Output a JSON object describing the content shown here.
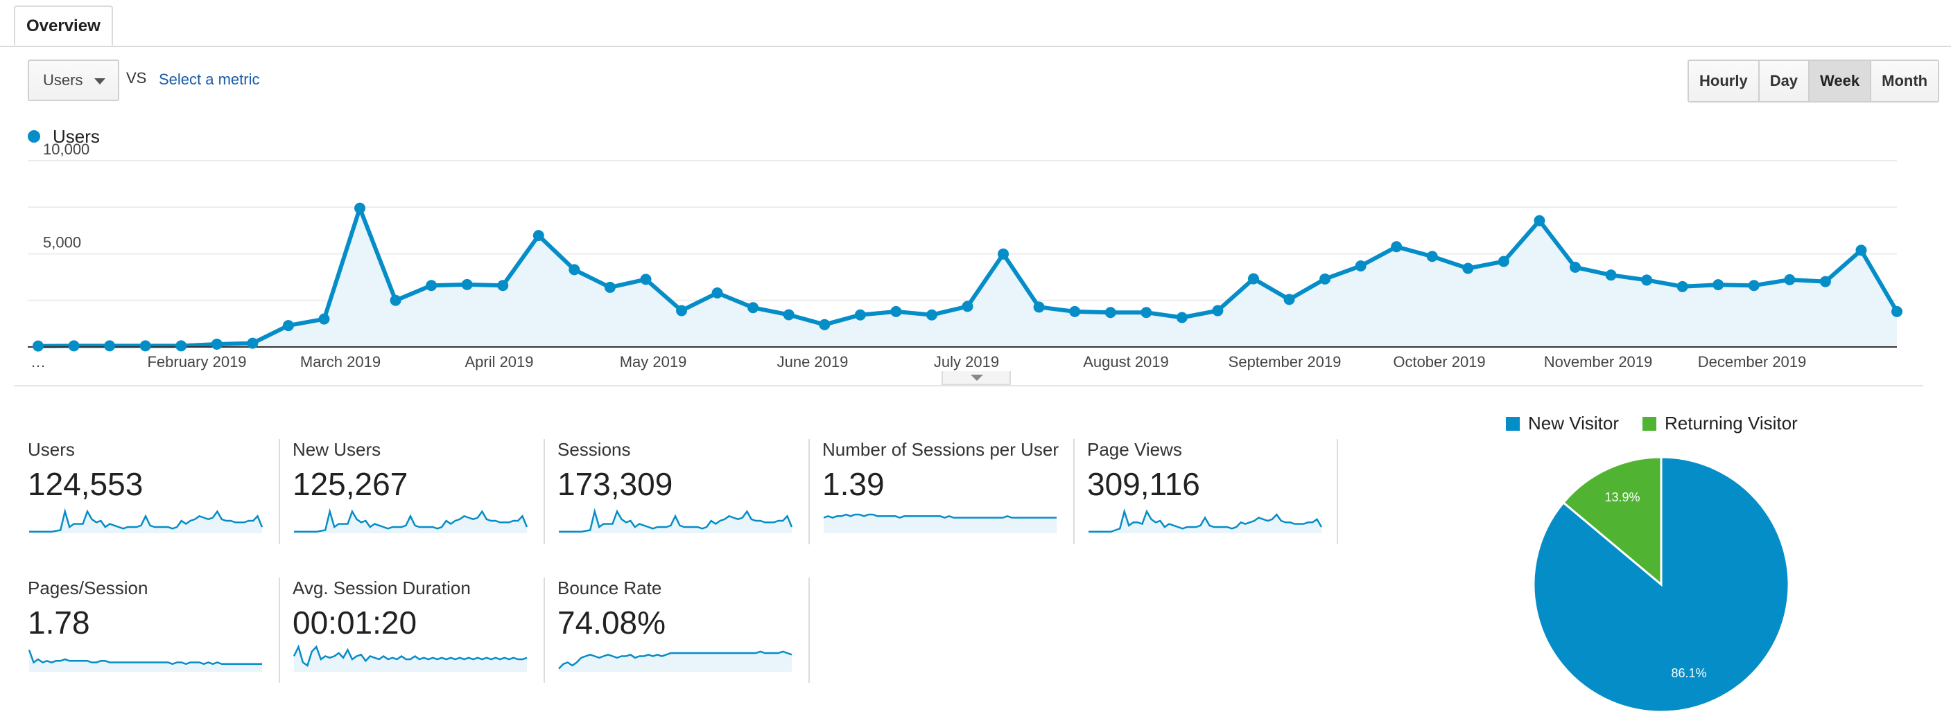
{
  "tabs": {
    "overview": "Overview"
  },
  "controls": {
    "metric_select_value": "Users",
    "vs_label": "VS",
    "select_metric_link": "Select a metric",
    "granularity": [
      "Hourly",
      "Day",
      "Week",
      "Month"
    ],
    "granularity_active": "Week"
  },
  "colors": {
    "series": "#058dc7",
    "series_fill": "#e9f4fb",
    "returning": "#50b432"
  },
  "chart_data": [
    {
      "type": "area",
      "series": [
        {
          "name": "Users",
          "values": [
            50,
            60,
            60,
            60,
            60,
            150,
            200,
            1150,
            1500,
            7450,
            2500,
            3300,
            3350,
            3300,
            5980,
            4150,
            3200,
            3630,
            1950,
            2900,
            2110,
            1730,
            1200,
            1720,
            1900,
            1720,
            2180,
            4990,
            2140,
            1900,
            1850,
            1850,
            1580,
            1950,
            3660,
            2550,
            3650,
            4350,
            5380,
            4860,
            4220,
            4590,
            6780,
            4280,
            3860,
            3590,
            3240,
            3340,
            3300,
            3610,
            3510,
            5190,
            1900
          ]
        }
      ],
      "x_tick_labels": [
        "…",
        "February 2019",
        "March 2019",
        "April 2019",
        "May 2019",
        "June 2019",
        "July 2019",
        "August 2019",
        "September 2019",
        "October 2019",
        "November 2019",
        "December 2019"
      ],
      "y_tick_labels": [
        "10,000",
        "5,000"
      ],
      "ylim": [
        0,
        10000
      ],
      "grid": true,
      "legend": "top-left"
    },
    {
      "type": "pie",
      "slices": [
        {
          "label": "New Visitor",
          "value": 86.1,
          "color": "#058dc7"
        },
        {
          "label": "Returning Visitor",
          "value": 13.9,
          "color": "#50b432"
        }
      ],
      "slice_labels": [
        "86.1%",
        "13.9%"
      ],
      "legend": "top"
    }
  ],
  "metrics": [
    {
      "label": "Users",
      "value": "124,553",
      "spark": [
        1,
        1,
        1,
        1,
        1,
        1,
        1.5,
        2,
        14,
        4,
        6,
        6,
        6,
        14,
        9,
        7,
        8,
        4,
        6,
        5,
        4,
        3,
        4,
        4,
        4,
        5,
        11,
        5,
        4,
        4,
        4,
        4,
        3,
        4,
        8,
        6,
        8,
        9,
        11,
        10,
        9,
        10,
        14,
        9,
        8,
        8,
        7,
        7,
        7,
        8,
        8,
        11,
        4
      ]
    },
    {
      "label": "New Users",
      "value": "125,267",
      "spark": [
        1,
        1,
        1,
        1,
        1,
        1,
        1.5,
        2,
        14,
        4,
        6,
        6,
        6,
        14,
        9,
        7,
        8,
        4,
        6,
        5,
        4,
        3,
        4,
        4,
        4,
        5,
        11,
        5,
        4,
        4,
        4,
        4,
        3,
        4,
        8,
        6,
        8,
        9,
        11,
        10,
        9,
        10,
        14,
        9,
        8,
        8,
        7,
        7,
        7,
        8,
        8,
        11,
        4
      ]
    },
    {
      "label": "Sessions",
      "value": "173,309",
      "spark": [
        1,
        1,
        1,
        1,
        1,
        1,
        1.5,
        2,
        14,
        4,
        6,
        6,
        6,
        14,
        9,
        7,
        8,
        4,
        6,
        5,
        4,
        3,
        4,
        4,
        4,
        5,
        11,
        5,
        4,
        4,
        4,
        4,
        3,
        4,
        8,
        6,
        8,
        9,
        11,
        10,
        9,
        10,
        14,
        9,
        8,
        8,
        7,
        7,
        7,
        8,
        8,
        11,
        4
      ]
    },
    {
      "label": "Number of Sessions per User",
      "value": "1.39",
      "spark": [
        10,
        11,
        10,
        11,
        11,
        12,
        11,
        12,
        12,
        11,
        12,
        12,
        11,
        11,
        11,
        11,
        11,
        10,
        11,
        11,
        11,
        11,
        11,
        11,
        11,
        11,
        11,
        10,
        11,
        10,
        10,
        10,
        10,
        10,
        10,
        10,
        10,
        10,
        10,
        10,
        10,
        11,
        10,
        10,
        10,
        10,
        10,
        10,
        10,
        10,
        10,
        10,
        10
      ]
    },
    {
      "label": "Page Views",
      "value": "309,116",
      "spark": [
        1,
        1,
        1,
        1,
        1,
        1,
        2,
        3,
        14,
        5,
        7,
        7,
        6,
        14,
        9,
        7,
        8,
        4,
        6,
        5,
        4,
        3,
        4,
        4,
        4,
        5,
        10,
        5,
        4,
        4,
        4,
        4,
        3,
        4,
        7,
        6,
        7,
        8,
        10,
        9,
        8,
        9,
        12,
        8,
        7,
        7,
        6,
        6,
        6,
        7,
        7,
        9,
        4
      ]
    },
    {
      "label": "Pages/Session",
      "value": "1.78",
      "spark": [
        14,
        6,
        8,
        6,
        7,
        6,
        7,
        7,
        8,
        7,
        7,
        7,
        7,
        7,
        6,
        6,
        7,
        7,
        6,
        6,
        6,
        6,
        6,
        6,
        6,
        6,
        6,
        6,
        6,
        6,
        6,
        6,
        5,
        6,
        6,
        5,
        6,
        6,
        6,
        5,
        6,
        5,
        6,
        5,
        5,
        5,
        5,
        5,
        5,
        5,
        5,
        5,
        5
      ]
    },
    {
      "label": "Avg. Session Duration",
      "value": "00:01:20",
      "spark": [
        10,
        16,
        6,
        4,
        13,
        16,
        8,
        10,
        9,
        10,
        12,
        9,
        14,
        8,
        10,
        11,
        7,
        10,
        9,
        8,
        10,
        8,
        9,
        8,
        10,
        8,
        8,
        10,
        8,
        9,
        8,
        9,
        8,
        9,
        8,
        9,
        8,
        9,
        8,
        9,
        8,
        9,
        8,
        9,
        8,
        9,
        8,
        9,
        8,
        9,
        8,
        8,
        9
      ]
    },
    {
      "label": "Bounce Rate",
      "value": "74.08%",
      "spark": [
        2,
        5,
        6,
        4,
        6,
        9,
        10,
        11,
        10,
        9,
        10,
        11,
        10,
        9,
        10,
        10,
        11,
        9,
        10,
        10,
        11,
        10,
        11,
        10,
        11,
        12,
        12,
        12,
        12,
        12,
        12,
        12,
        12,
        12,
        12,
        12,
        12,
        12,
        12,
        12,
        12,
        12,
        12,
        12,
        12,
        13,
        12,
        12,
        12,
        12,
        13,
        12,
        11
      ]
    }
  ]
}
